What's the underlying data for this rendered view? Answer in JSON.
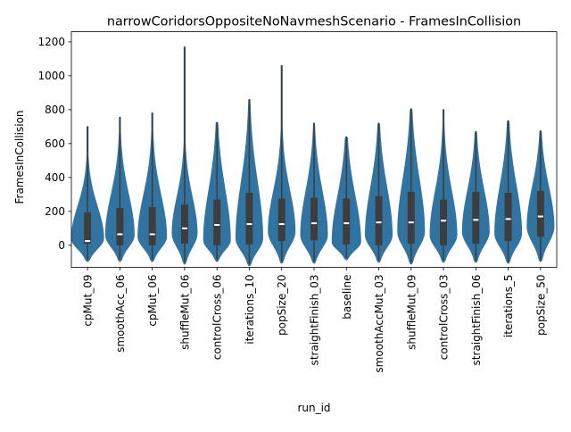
{
  "chart_data": {
    "type": "violin",
    "title": "narrowCoridorsOppositeNoNavmeshScenario - FramesInCollision",
    "xlabel": "run_id",
    "ylabel": "FramesInCollision",
    "ylim": [
      -130,
      1260
    ],
    "yticks": [
      0,
      200,
      400,
      600,
      800,
      1000,
      1200
    ],
    "grid": false,
    "legend": "none",
    "colors": {
      "violin": "#3274a1",
      "box": "#3d3d3d",
      "median": "#ffffff",
      "axis": "#000000"
    },
    "categories": [
      "cpMut_09",
      "smoothAcc_06",
      "cpMut_06",
      "shuffleMut_06",
      "controlCross_06",
      "iterations_10",
      "popSize_20",
      "straightFinish_03",
      "baseline",
      "smoothAccMut_03",
      "shuffleMut_09",
      "controlCross_03",
      "straightFinish_06",
      "iterations_5",
      "popSize_50"
    ],
    "series": [
      {
        "category": "cpMut_09",
        "min": -95,
        "q1": 10,
        "median": 25,
        "q3": 195,
        "max": 700,
        "whisker_high": 420,
        "mode": 40,
        "max_density_width": 36
      },
      {
        "category": "smoothAcc_06",
        "min": -95,
        "q1": 0,
        "median": 65,
        "q3": 220,
        "max": 755,
        "whisker_high": 540,
        "mode": 60,
        "max_density_width": 32
      },
      {
        "category": "cpMut_06",
        "min": -95,
        "q1": 0,
        "median": 65,
        "q3": 225,
        "max": 780,
        "whisker_high": 540,
        "mode": 50,
        "max_density_width": 32
      },
      {
        "category": "shuffleMut_06",
        "min": -110,
        "q1": 10,
        "median": 100,
        "q3": 240,
        "max": 1170,
        "whisker_high": 500,
        "mode": 70,
        "max_density_width": 28
      },
      {
        "category": "controlCross_06",
        "min": -95,
        "q1": 0,
        "median": 120,
        "q3": 270,
        "max": 725,
        "whisker_high": 620,
        "mode": 30,
        "max_density_width": 30
      },
      {
        "category": "iterations_10",
        "min": -120,
        "q1": 5,
        "median": 125,
        "q3": 310,
        "max": 860,
        "whisker_high": 700,
        "mode": 40,
        "max_density_width": 30
      },
      {
        "category": "popSize_20",
        "min": -105,
        "q1": 25,
        "median": 125,
        "q3": 275,
        "max": 1060,
        "whisker_high": 560,
        "mode": 80,
        "max_density_width": 30
      },
      {
        "category": "straightFinish_03",
        "min": -105,
        "q1": 30,
        "median": 130,
        "q3": 280,
        "max": 720,
        "whisker_high": 580,
        "mode": 60,
        "max_density_width": 30
      },
      {
        "category": "baseline",
        "min": -85,
        "q1": 5,
        "median": 130,
        "q3": 275,
        "max": 640,
        "whisker_high": 560,
        "mode": 20,
        "max_density_width": 32
      },
      {
        "category": "smoothAccMut_03",
        "min": -100,
        "q1": 0,
        "median": 135,
        "q3": 290,
        "max": 720,
        "whisker_high": 620,
        "mode": 60,
        "max_density_width": 30
      },
      {
        "category": "shuffleMut_09",
        "min": -110,
        "q1": 10,
        "median": 135,
        "q3": 315,
        "max": 805,
        "whisker_high": 700,
        "mode": 80,
        "max_density_width": 30
      },
      {
        "category": "controlCross_03",
        "min": -100,
        "q1": 0,
        "median": 145,
        "q3": 270,
        "max": 800,
        "whisker_high": 580,
        "mode": 60,
        "max_density_width": 30
      },
      {
        "category": "straightFinish_06",
        "min": -100,
        "q1": 10,
        "median": 150,
        "q3": 315,
        "max": 670,
        "whisker_high": 570,
        "mode": 80,
        "max_density_width": 30
      },
      {
        "category": "iterations_5",
        "min": -105,
        "q1": 25,
        "median": 155,
        "q3": 310,
        "max": 735,
        "whisker_high": 630,
        "mode": 70,
        "max_density_width": 30
      },
      {
        "category": "popSize_50",
        "min": -95,
        "q1": 50,
        "median": 170,
        "q3": 320,
        "max": 675,
        "whisker_high": 580,
        "mode": 110,
        "max_density_width": 30
      }
    ]
  }
}
